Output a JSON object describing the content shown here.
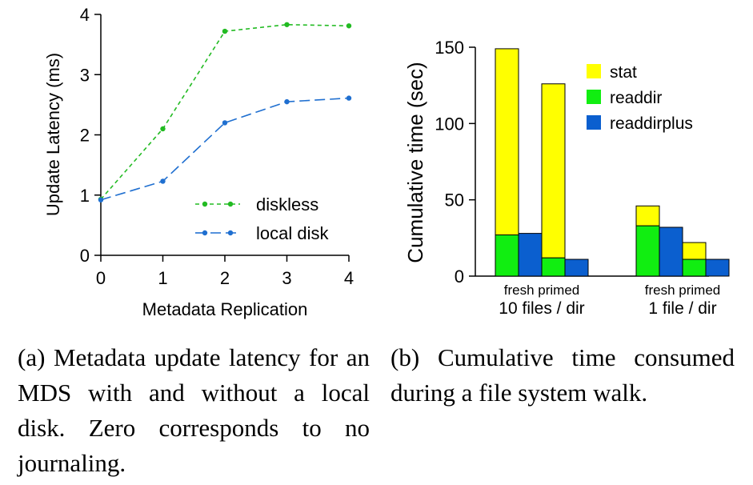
{
  "chart_data": [
    {
      "type": "line",
      "title": "",
      "xlabel": "Metadata Replication",
      "ylabel": "Update Latency (ms)",
      "x": [
        0,
        1,
        2,
        3,
        4
      ],
      "xlim": [
        0,
        4
      ],
      "ylim": [
        0,
        4
      ],
      "x_ticks": [
        "0",
        "1",
        "2",
        "3",
        "4"
      ],
      "y_ticks": [
        "0",
        "1",
        "2",
        "3",
        "4"
      ],
      "grid": false,
      "legend_position": "bottom-right",
      "series": [
        {
          "name": "diskless",
          "values": [
            0.93,
            2.1,
            3.72,
            3.83,
            3.81
          ],
          "color": "#22bb22",
          "dash": "short-dash"
        },
        {
          "name": "local disk",
          "values": [
            0.92,
            1.23,
            2.2,
            2.55,
            2.61
          ],
          "color": "#1f6fd0",
          "dash": "long-dash"
        }
      ]
    },
    {
      "type": "bar",
      "stacked": true,
      "title": "",
      "xlabel": "",
      "ylabel": "Cumulative time (sec)",
      "ylim": [
        0,
        150
      ],
      "y_ticks": [
        "0",
        "50",
        "100",
        "150"
      ],
      "grid": false,
      "legend_position": "top-right",
      "groups": [
        {
          "label": "10 files / dir",
          "sublabel": "fresh primed"
        },
        {
          "label": "1 file / dir",
          "sublabel": "fresh primed"
        }
      ],
      "bars": [
        {
          "group": 0,
          "subgroup": "fresh",
          "stack": [
            {
              "series": "readdir",
              "value": 27
            },
            {
              "series": "stat",
              "value": 122
            }
          ]
        },
        {
          "group": 0,
          "subgroup": "fresh",
          "stack": [
            {
              "series": "readdirplus",
              "value": 28
            }
          ]
        },
        {
          "group": 0,
          "subgroup": "primed",
          "stack": [
            {
              "series": "readdir",
              "value": 12
            },
            {
              "series": "stat",
              "value": 114
            }
          ]
        },
        {
          "group": 0,
          "subgroup": "primed",
          "stack": [
            {
              "series": "readdirplus",
              "value": 11
            }
          ]
        },
        {
          "group": 1,
          "subgroup": "fresh",
          "stack": [
            {
              "series": "readdir",
              "value": 33
            },
            {
              "series": "stat",
              "value": 13
            }
          ]
        },
        {
          "group": 1,
          "subgroup": "fresh",
          "stack": [
            {
              "series": "readdirplus",
              "value": 32
            }
          ]
        },
        {
          "group": 1,
          "subgroup": "primed",
          "stack": [
            {
              "series": "readdir",
              "value": 11
            },
            {
              "series": "stat",
              "value": 11
            }
          ]
        },
        {
          "group": 1,
          "subgroup": "primed",
          "stack": [
            {
              "series": "readdirplus",
              "value": 11
            }
          ]
        }
      ],
      "series": [
        {
          "name": "stat",
          "color": "#ffff00"
        },
        {
          "name": "readdir",
          "color": "#11ee11"
        },
        {
          "name": "readdirplus",
          "color": "#0b5fcf"
        }
      ]
    }
  ],
  "captions": {
    "a": "(a) Metadata update latency for an MDS with and without a local disk. Zero corresponds to no journaling.",
    "b": "(b) Cumulative time consumed during a file system walk."
  }
}
